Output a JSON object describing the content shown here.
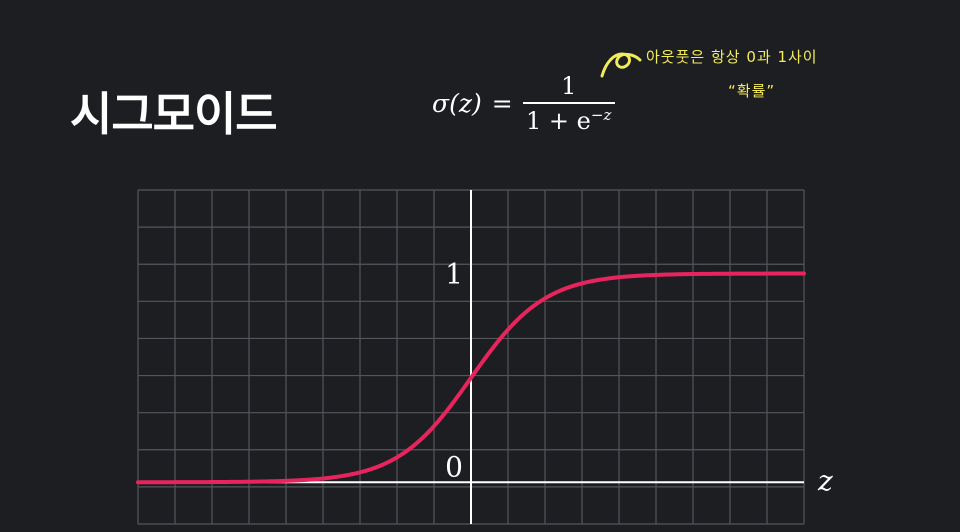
{
  "title": "시그모이드",
  "formula": {
    "lhs": "σ(z)",
    "eq": "=",
    "numerator": "1",
    "denominator_base": "1 + e",
    "denominator_exp": "−z"
  },
  "annotation": {
    "line1": "아웃풋은 항상 0과 1사이",
    "line2": "“확률”",
    "color": "#f3ec5a"
  },
  "chart_data": {
    "type": "line",
    "function": "sigmoid",
    "xlabel": "z",
    "ylabel": "",
    "xlim": [
      -9,
      9
    ],
    "ylim": [
      -0.2,
      1.4
    ],
    "grid": true,
    "ticks": {
      "y": [
        "0",
        "1"
      ]
    },
    "series": [
      {
        "x": [
          -9,
          -8,
          -7,
          -6,
          -5,
          -4,
          -3,
          -2,
          -1,
          0,
          1,
          2,
          3,
          4,
          5,
          6,
          7,
          8,
          9
        ],
        "y": [
          0.0001,
          0.0003,
          0.0009,
          0.0025,
          0.0067,
          0.018,
          0.047,
          0.119,
          0.269,
          0.5,
          0.731,
          0.881,
          0.953,
          0.982,
          0.993,
          0.998,
          0.999,
          1.0,
          1.0
        ],
        "color": "#e8245e"
      }
    ]
  },
  "colors": {
    "background": "#1d1e22",
    "grid": "#55565c",
    "axis": "#ffffff",
    "curve": "#e8245e",
    "text": "#ffffff"
  }
}
